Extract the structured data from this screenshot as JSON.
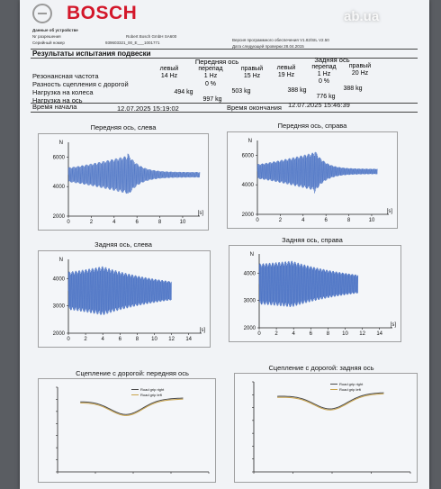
{
  "header": {
    "brand": "BOSCH",
    "watermark": "ab.ua",
    "device_label": "Данные об устройстве",
    "approval_label": "Nr разрешения",
    "manufacturer": "Robert Bosch GmbH SA600",
    "serial_label": "Серийный номер",
    "serial_value": "939603321_00_E___1001771",
    "software_version": "Версия программного обеспечения V1.82/SIL V2.50",
    "update_date": "Дата следующей проверки 28.04.2015"
  },
  "results": {
    "title": "Результаты испытания подвески",
    "front_axle": "Передняя ось",
    "rear_axle": "Задняя ось",
    "col_left": "левый",
    "col_diff": "перепад",
    "col_right": "правый",
    "rows": [
      {
        "label": "Резонансная частота",
        "front_left": "14 Hz",
        "front_diff": "1 Hz",
        "front_right": "15 Hz",
        "rear_left": "19 Hz",
        "rear_diff": "1 Hz",
        "rear_right": "20 Hz"
      },
      {
        "label": "Разность сцепления с дорогой",
        "front_diff": "0 %",
        "rear_diff": "0 %"
      },
      {
        "label": "Нагрузка на колеса",
        "front_left": "494 kg",
        "front_right": "503 kg",
        "rear_left": "388 kg",
        "rear_right": "388 kg"
      },
      {
        "label": "Нагрузка на ось",
        "front_total": "997 kg",
        "rear_total": "776 kg"
      }
    ],
    "start_label": "Время начала",
    "start_value": "12.07.2025 15:19:02",
    "end_label": "Время окончания",
    "end_value": "12.07.2025 15:46:39"
  },
  "charts": [
    {
      "title": "Передняя ось, слева",
      "y_unit": "N",
      "x_unit": "[s]",
      "y_ticks": [
        "6000",
        "4000",
        "2000"
      ],
      "x_ticks": [
        "0",
        "2",
        "4",
        "6",
        "8",
        "10"
      ]
    },
    {
      "title": "Передняя ось, справа",
      "y_unit": "N",
      "x_unit": "[s]",
      "y_ticks": [
        "6000",
        "4000",
        "2000"
      ],
      "x_ticks": [
        "0",
        "2",
        "4",
        "6",
        "8",
        "10"
      ]
    },
    {
      "title": "Задняя ось, слева",
      "y_unit": "N",
      "x_unit": "[s]",
      "y_ticks": [
        "4000",
        "3000",
        "2000"
      ],
      "x_ticks": [
        "0",
        "2",
        "4",
        "6",
        "8",
        "10",
        "12",
        "14"
      ]
    },
    {
      "title": "Задняя ось, справа",
      "y_unit": "N",
      "x_unit": "[s]",
      "y_ticks": [
        "4000",
        "3000",
        "2000"
      ],
      "x_ticks": [
        "0",
        "2",
        "4",
        "6",
        "8",
        "10",
        "12",
        "14"
      ]
    },
    {
      "title": "Сцепление с дорогой: передняя ось",
      "legend": [
        "Road grip right",
        "Road grip left"
      ]
    },
    {
      "title": "Сцепление с дорогой: задняя ось",
      "legend": [
        "Road grip right",
        "Road grip left"
      ]
    }
  ],
  "colors": {
    "wave": "#4a72c4",
    "grip_right": "#4a4a4a",
    "grip_left": "#c8a24a",
    "brand": "#d3172a"
  }
}
